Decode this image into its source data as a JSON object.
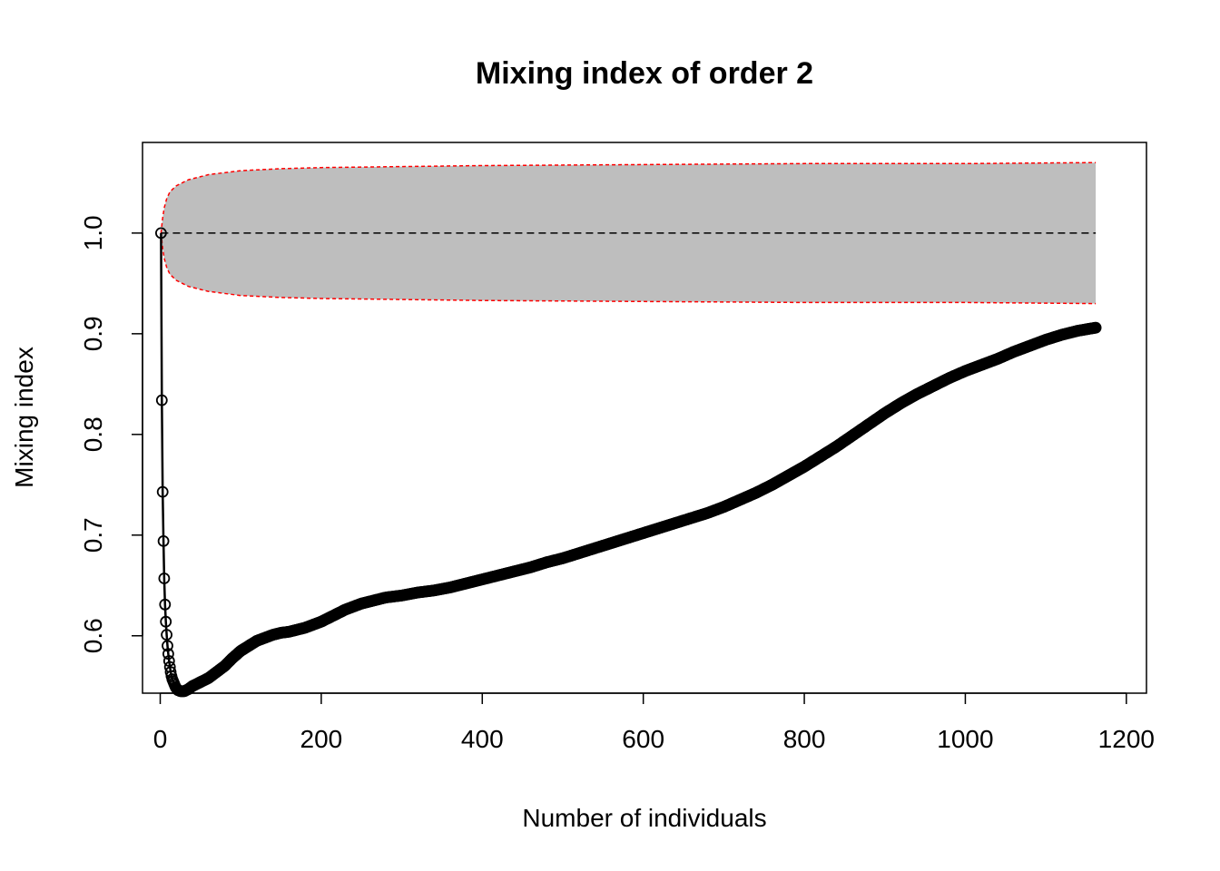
{
  "chart_data": {
    "type": "line",
    "title": "Mixing index of order 2",
    "xlabel": "Number of individuals",
    "ylabel": "Mixing index",
    "xlim": [
      -22,
      1225
    ],
    "ylim": [
      0.543,
      1.09
    ],
    "x_ticks": [
      0,
      200,
      400,
      600,
      800,
      1000,
      1200
    ],
    "x_tick_labels": [
      "0",
      "200",
      "400",
      "600",
      "800",
      "1000",
      "1200"
    ],
    "y_ticks": [
      0.6,
      0.7,
      0.8,
      0.9,
      1.0
    ],
    "y_tick_labels": [
      "0.6",
      "0.7",
      "0.8",
      "0.9",
      "1.0"
    ],
    "grid": false,
    "legend": "none",
    "reference_line": {
      "y": 1.0,
      "x_range": [
        1,
        1162
      ],
      "style": "dashed",
      "color": "#000000"
    },
    "envelope": {
      "fill_color": "#bebebe",
      "border_color": "#ff0000",
      "x": [
        1,
        2,
        3,
        5,
        8,
        12,
        20,
        35,
        60,
        100,
        150,
        200,
        300,
        400,
        600,
        800,
        1000,
        1162
      ],
      "upper": [
        1.0,
        1.008,
        1.015,
        1.025,
        1.034,
        1.041,
        1.047,
        1.053,
        1.058,
        1.062,
        1.064,
        1.065,
        1.066,
        1.067,
        1.068,
        1.069,
        1.069,
        1.07
      ],
      "lower": [
        1.0,
        0.992,
        0.985,
        0.975,
        0.966,
        0.959,
        0.953,
        0.947,
        0.942,
        0.938,
        0.936,
        0.935,
        0.934,
        0.933,
        0.932,
        0.931,
        0.931,
        0.93
      ]
    },
    "series": [
      {
        "style": "points-and-line",
        "color": "#000000",
        "x": [
          1,
          2,
          3,
          4,
          5,
          6,
          7,
          8,
          9,
          10,
          11,
          12,
          13,
          14,
          15,
          17,
          19,
          22,
          25,
          30,
          35,
          40,
          45,
          50,
          55,
          60,
          65,
          70,
          80,
          90,
          100,
          110,
          120,
          130,
          140,
          150,
          160,
          170,
          180,
          190,
          200,
          210,
          220,
          230,
          240,
          250,
          260,
          270,
          280,
          290,
          300,
          320,
          340,
          360,
          380,
          400,
          420,
          440,
          460,
          480,
          500,
          520,
          540,
          560,
          580,
          600,
          620,
          640,
          660,
          680,
          700,
          720,
          740,
          760,
          780,
          800,
          820,
          840,
          860,
          880,
          900,
          920,
          940,
          960,
          980,
          1000,
          1020,
          1040,
          1060,
          1080,
          1100,
          1120,
          1140,
          1162
        ],
        "y": [
          1.0,
          0.834,
          0.743,
          0.694,
          0.657,
          0.631,
          0.614,
          0.601,
          0.59,
          0.582,
          0.575,
          0.569,
          0.564,
          0.56,
          0.557,
          0.553,
          0.549,
          0.546,
          0.545,
          0.545,
          0.547,
          0.55,
          0.552,
          0.554,
          0.556,
          0.558,
          0.561,
          0.564,
          0.57,
          0.578,
          0.585,
          0.59,
          0.595,
          0.598,
          0.601,
          0.603,
          0.604,
          0.606,
          0.608,
          0.611,
          0.614,
          0.618,
          0.622,
          0.626,
          0.629,
          0.632,
          0.634,
          0.636,
          0.638,
          0.639,
          0.64,
          0.643,
          0.645,
          0.648,
          0.652,
          0.656,
          0.66,
          0.664,
          0.668,
          0.673,
          0.677,
          0.682,
          0.687,
          0.692,
          0.697,
          0.702,
          0.707,
          0.712,
          0.717,
          0.722,
          0.728,
          0.735,
          0.742,
          0.75,
          0.759,
          0.768,
          0.778,
          0.788,
          0.799,
          0.81,
          0.821,
          0.831,
          0.84,
          0.848,
          0.856,
          0.863,
          0.869,
          0.875,
          0.882,
          0.888,
          0.894,
          0.899,
          0.903,
          0.906
        ]
      }
    ]
  }
}
